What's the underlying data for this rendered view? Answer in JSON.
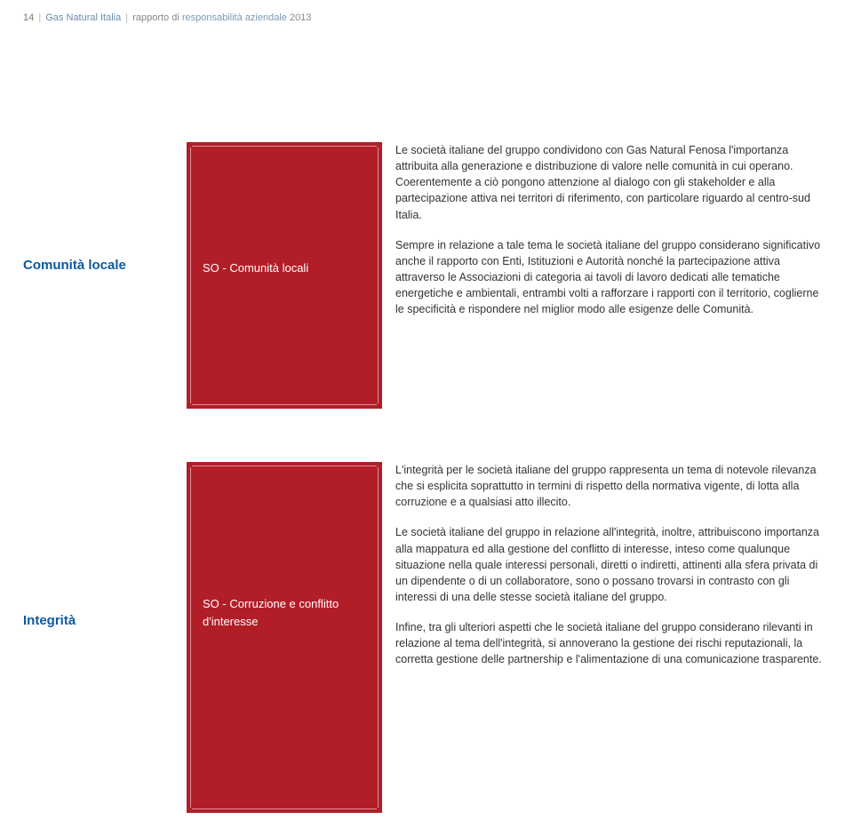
{
  "header": {
    "page_num": "14",
    "company": "Gas Natural Italia",
    "report_prefix": "rapporto di ",
    "report_em": "responsabilità aziendale",
    "report_year": " 2013"
  },
  "section1": {
    "title": "Comunità locale",
    "red_label": "SO - Comunità locali",
    "para1": "Le società italiane del gruppo condividono con Gas Natural Fenosa l'importanza attribuita alla generazione e distribuzione di valore nelle comunità in cui operano. Coerentemente a ciò pongono attenzione al dialogo con gli stakeholder e alla partecipazione attiva nei territori di riferimento, con particolare riguardo al centro-sud Italia.",
    "para2": "Sempre in relazione a tale tema le società italiane del gruppo considerano significativo anche il rapporto con Enti, Istituzioni e Autorità nonché la partecipazione attiva attraverso le Associazioni di categoria ai tavoli di lavoro dedicati alle tematiche energetiche e ambientali, entrambi volti a rafforzare i rapporti con il territorio, coglierne le specificità e rispondere nel miglior modo alle esigenze delle Comunità."
  },
  "section2": {
    "title": "Integrità",
    "red_label": "SO - Corruzione e conflitto d'interesse",
    "para1": "L'integrità per le società italiane del gruppo rappresenta un tema di notevole rilevanza che si esplicita soprattutto in termini di rispetto della normativa vigente, di lotta alla corruzione e a qualsiasi atto illecito.",
    "para2": "Le società italiane del gruppo in relazione all'integrità, inoltre, attribuiscono importanza alla mappatura ed alla gestione del conflitto di interesse, inteso come qualunque situazione nella quale interessi personali, diretti o indiretti, attinenti alla sfera privata di un dipendente o di un collaboratore, sono o possano trovarsi in contrasto con gli interessi di una delle stesse società italiane del gruppo.",
    "para3": "Infine, tra gli ulteriori aspetti che le società italiane del gruppo considerano rilevanti in relazione al tema dell'integrità, si annoverano la gestione dei rischi reputazionali, la corretta gestione delle partnership e l'alimentazione di una comunicazione trasparente."
  }
}
